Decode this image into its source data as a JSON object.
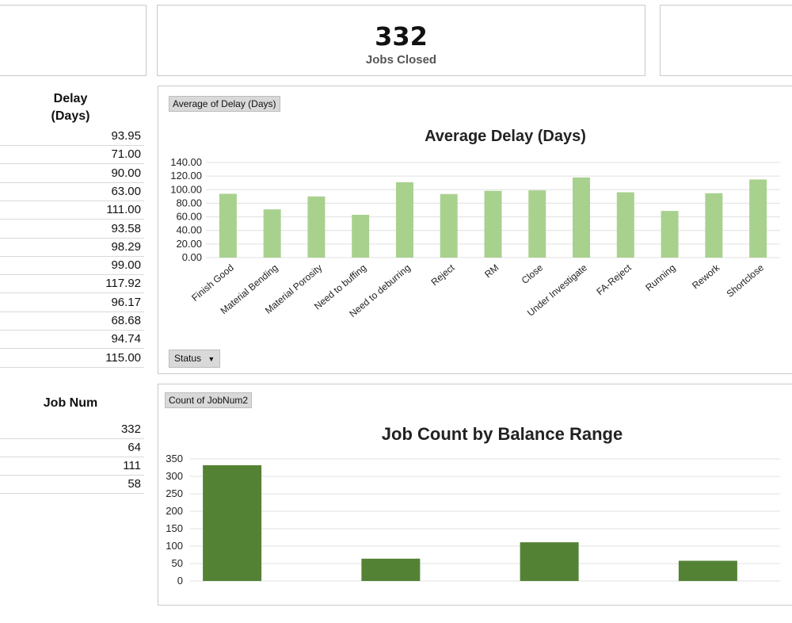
{
  "kpi": {
    "value": "332",
    "label": "Jobs Closed"
  },
  "delay_table": {
    "header": [
      "Delay",
      "(Days)"
    ],
    "values": [
      "93.95",
      "71.00",
      "90.00",
      "63.00",
      "111.00",
      "93.58",
      "98.29",
      "99.00",
      "117.92",
      "96.17",
      "68.68",
      "94.74",
      "115.00"
    ]
  },
  "jobnum_table": {
    "header": "Job Num",
    "values": [
      "332",
      "64",
      "111",
      "58"
    ]
  },
  "delay_chart": {
    "field_button": "Average of Delay (Days)",
    "filter_button": "Status",
    "filter_arrow": "▼"
  },
  "count_chart": {
    "field_button": "Count of JobNum2"
  },
  "chart_data": [
    {
      "type": "bar",
      "title": "Average Delay (Days)",
      "categories": [
        "Finish Good",
        "Material Bending",
        "Material Porosity",
        "Need to buffing",
        "Need to deburring",
        "Reject",
        "RM",
        "Close",
        "Under Investigate",
        "FA-Reject",
        "Running",
        "Rework",
        "Shortclose"
      ],
      "values": [
        93.95,
        71.0,
        90.0,
        63.0,
        111.0,
        93.58,
        98.29,
        99.0,
        117.92,
        96.17,
        68.68,
        94.74,
        115.0
      ],
      "yticks": [
        "0.00",
        "20.00",
        "40.00",
        "60.00",
        "80.00",
        "100.00",
        "120.00",
        "140.00"
      ],
      "ylim": [
        0,
        140
      ],
      "color": "#a9d18e",
      "grid": true
    },
    {
      "type": "bar",
      "title": "Job Count by Balance Range",
      "values": [
        332,
        64,
        111,
        58
      ],
      "yticks": [
        "0",
        "50",
        "100",
        "150",
        "200",
        "250",
        "300",
        "350"
      ],
      "ylim": [
        0,
        350
      ],
      "color": "#548235",
      "grid": true
    }
  ]
}
